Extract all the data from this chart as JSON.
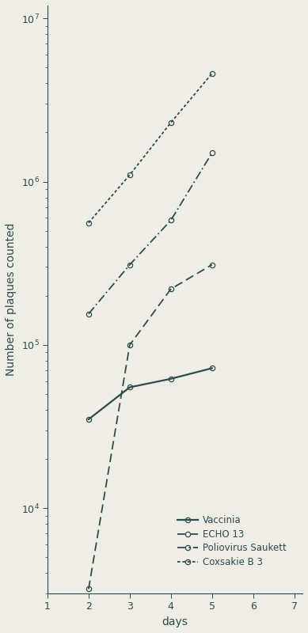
{
  "background_color": "#eeeee6",
  "line_color": "#2e4a4a",
  "ylabel": "Number of plaques counted",
  "xlabel": "days",
  "xlim": [
    1,
    7.2
  ],
  "ylim_log": [
    3000,
    12000000.0
  ],
  "series": [
    {
      "name": "Vaccinia",
      "x": [
        2,
        3,
        4,
        5
      ],
      "y": [
        35000,
        55000,
        62000,
        72000
      ],
      "linestyle": "solid",
      "linewidth": 1.6
    },
    {
      "name": "ECHO 13",
      "x": [
        2,
        3,
        4,
        5
      ],
      "y": [
        3200,
        100000,
        220000,
        310000
      ],
      "linestyle": "dashed",
      "linewidth": 1.3
    },
    {
      "name": "Poliovirus Saukett",
      "x": [
        2,
        3,
        4,
        5
      ],
      "y": [
        155000,
        310000,
        580000,
        1500000
      ],
      "linestyle": "dashdot",
      "linewidth": 1.3
    },
    {
      "name": "Coxsakie B 3",
      "x": [
        2,
        3,
        4,
        5
      ],
      "y": [
        560000,
        1100000,
        2300000,
        4600000
      ],
      "linestyle": "dotted",
      "linewidth": 1.3
    }
  ],
  "xticks": [
    1,
    2,
    3,
    4,
    5,
    6,
    7
  ],
  "legend_fontsize": 8.5,
  "tick_labelsize": 9,
  "axis_labelsize": 10,
  "markersize": 4.5
}
